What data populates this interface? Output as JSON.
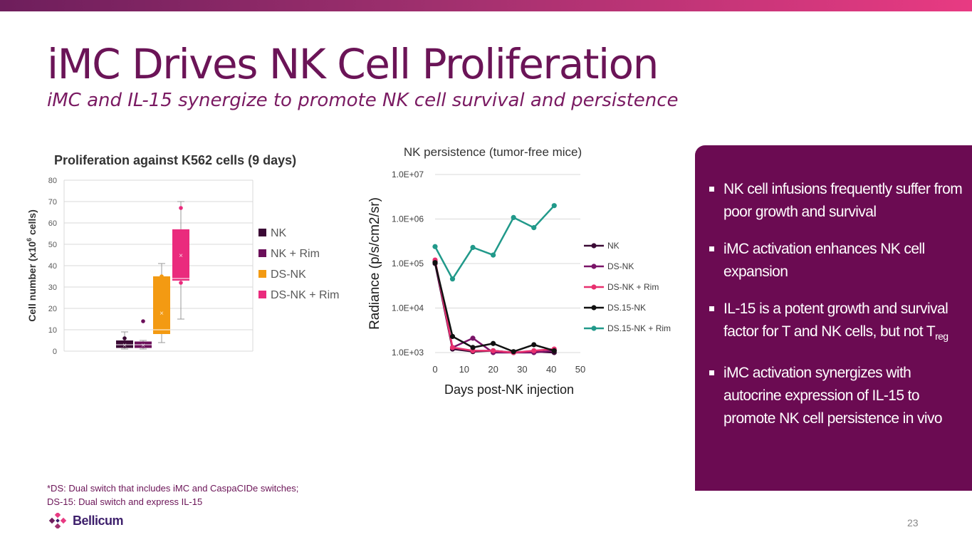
{
  "slide": {
    "title": "iMC Drives NK Cell Proliferation",
    "subtitle": "iMC and IL-15 synergize to promote NK cell survival and persistence",
    "page_number": "23",
    "brand": "Bellicum",
    "footnotes": [
      "*DS: Dual switch that includes iMC and CaspaCIDe switches;",
      "DS-15: Dual switch and express IL-15"
    ]
  },
  "panel": {
    "bullets": [
      {
        "text": "NK cell infusions frequently suffer from poor growth and survival"
      },
      {
        "text": "iMC activation enhances NK cell expansion"
      },
      {
        "text": "IL-15 is a potent growth and survival factor for T and NK cells, but not T",
        "sub": "reg"
      },
      {
        "text": "iMC activation synergizes with autocrine expression of IL-15 to promote NK cell persistence in vivo"
      }
    ],
    "background_color": "#6b0b52"
  },
  "chart_data": [
    {
      "type": "box",
      "title": "Proliferation against K562 cells (9 days)",
      "ylabel_parts": [
        "Cell number (x10",
        "6",
        " cells)"
      ],
      "ylim": [
        0,
        80
      ],
      "yticks": [
        "0",
        "10",
        "20",
        "30",
        "40",
        "50",
        "60",
        "70",
        "80"
      ],
      "legend_position": "right",
      "series": [
        {
          "name": "NK",
          "color": "#3b0a35",
          "min": 1,
          "q1": 1.5,
          "median": 3,
          "q3": 5,
          "max": 9,
          "mean": 3,
          "outliers": [
            6
          ]
        },
        {
          "name": "NK + Rim",
          "color": "#6b0f5a",
          "min": 1,
          "q1": 1.5,
          "median": 3,
          "q3": 4.5,
          "max": 5,
          "mean": 3,
          "outliers": [
            14
          ]
        },
        {
          "name": "DS-NK",
          "color": "#f39a12",
          "min": 4,
          "q1": 8,
          "median": 10,
          "q3": 35,
          "max": 41,
          "mean": 18,
          "outliers": [
            35
          ]
        },
        {
          "name": "DS-NK + Rim",
          "color": "#ea2b7d",
          "min": 15,
          "q1": 33,
          "median": 34,
          "q3": 57,
          "max": 70,
          "mean": 45,
          "outliers": [
            32,
            67
          ]
        }
      ]
    },
    {
      "type": "line",
      "title": "NK persistence (tumor-free mice)",
      "xlabel": "Days post-NK injection",
      "ylabel": "Radiance (p/s/cm2/sr)",
      "yscale": "log",
      "ylim": [
        1000,
        10000000
      ],
      "xlim": [
        0,
        50
      ],
      "xticks": [
        "0",
        "10",
        "20",
        "30",
        "40",
        "50"
      ],
      "yticks": [
        "1.0E+03",
        "1.0E+04",
        "1.0E+05",
        "1.0E+06",
        "1.0E+07"
      ],
      "grid": true,
      "legend_position": "right",
      "series": [
        {
          "name": "NK",
          "color": "#3b0a35",
          "points": [
            [
              0,
              100000
            ],
            [
              6,
              1200
            ],
            [
              13,
              1050
            ],
            [
              20,
              1100
            ],
            [
              27,
              1000
            ],
            [
              34,
              1050
            ],
            [
              41,
              1000
            ]
          ]
        },
        {
          "name": "DS-NK",
          "color": "#7a1468",
          "points": [
            [
              0,
              110000
            ],
            [
              6,
              1300
            ],
            [
              13,
              2100
            ],
            [
              20,
              1000
            ],
            [
              27,
              1000
            ],
            [
              34,
              1000
            ],
            [
              41,
              1100
            ]
          ]
        },
        {
          "name": "DS-NK + Rim",
          "color": "#e8306f",
          "points": [
            [
              0,
              120000
            ],
            [
              6,
              1300
            ],
            [
              13,
              1100
            ],
            [
              20,
              1100
            ],
            [
              27,
              1000
            ],
            [
              34,
              1100
            ],
            [
              41,
              1200
            ]
          ]
        },
        {
          "name": "DS.15-NK",
          "color": "#111111",
          "points": [
            [
              0,
              105000
            ],
            [
              6,
              2300
            ],
            [
              13,
              1300
            ],
            [
              20,
              1600
            ],
            [
              27,
              1050
            ],
            [
              34,
              1500
            ],
            [
              41,
              1100
            ]
          ]
        },
        {
          "name": "DS.15-NK + Rim",
          "color": "#21998a",
          "points": [
            [
              0,
              240000
            ],
            [
              6,
              45000
            ],
            [
              13,
              230000
            ],
            [
              20,
              155000
            ],
            [
              27,
              1080000
            ],
            [
              34,
              640000
            ],
            [
              41,
              2000000
            ]
          ]
        }
      ]
    }
  ]
}
